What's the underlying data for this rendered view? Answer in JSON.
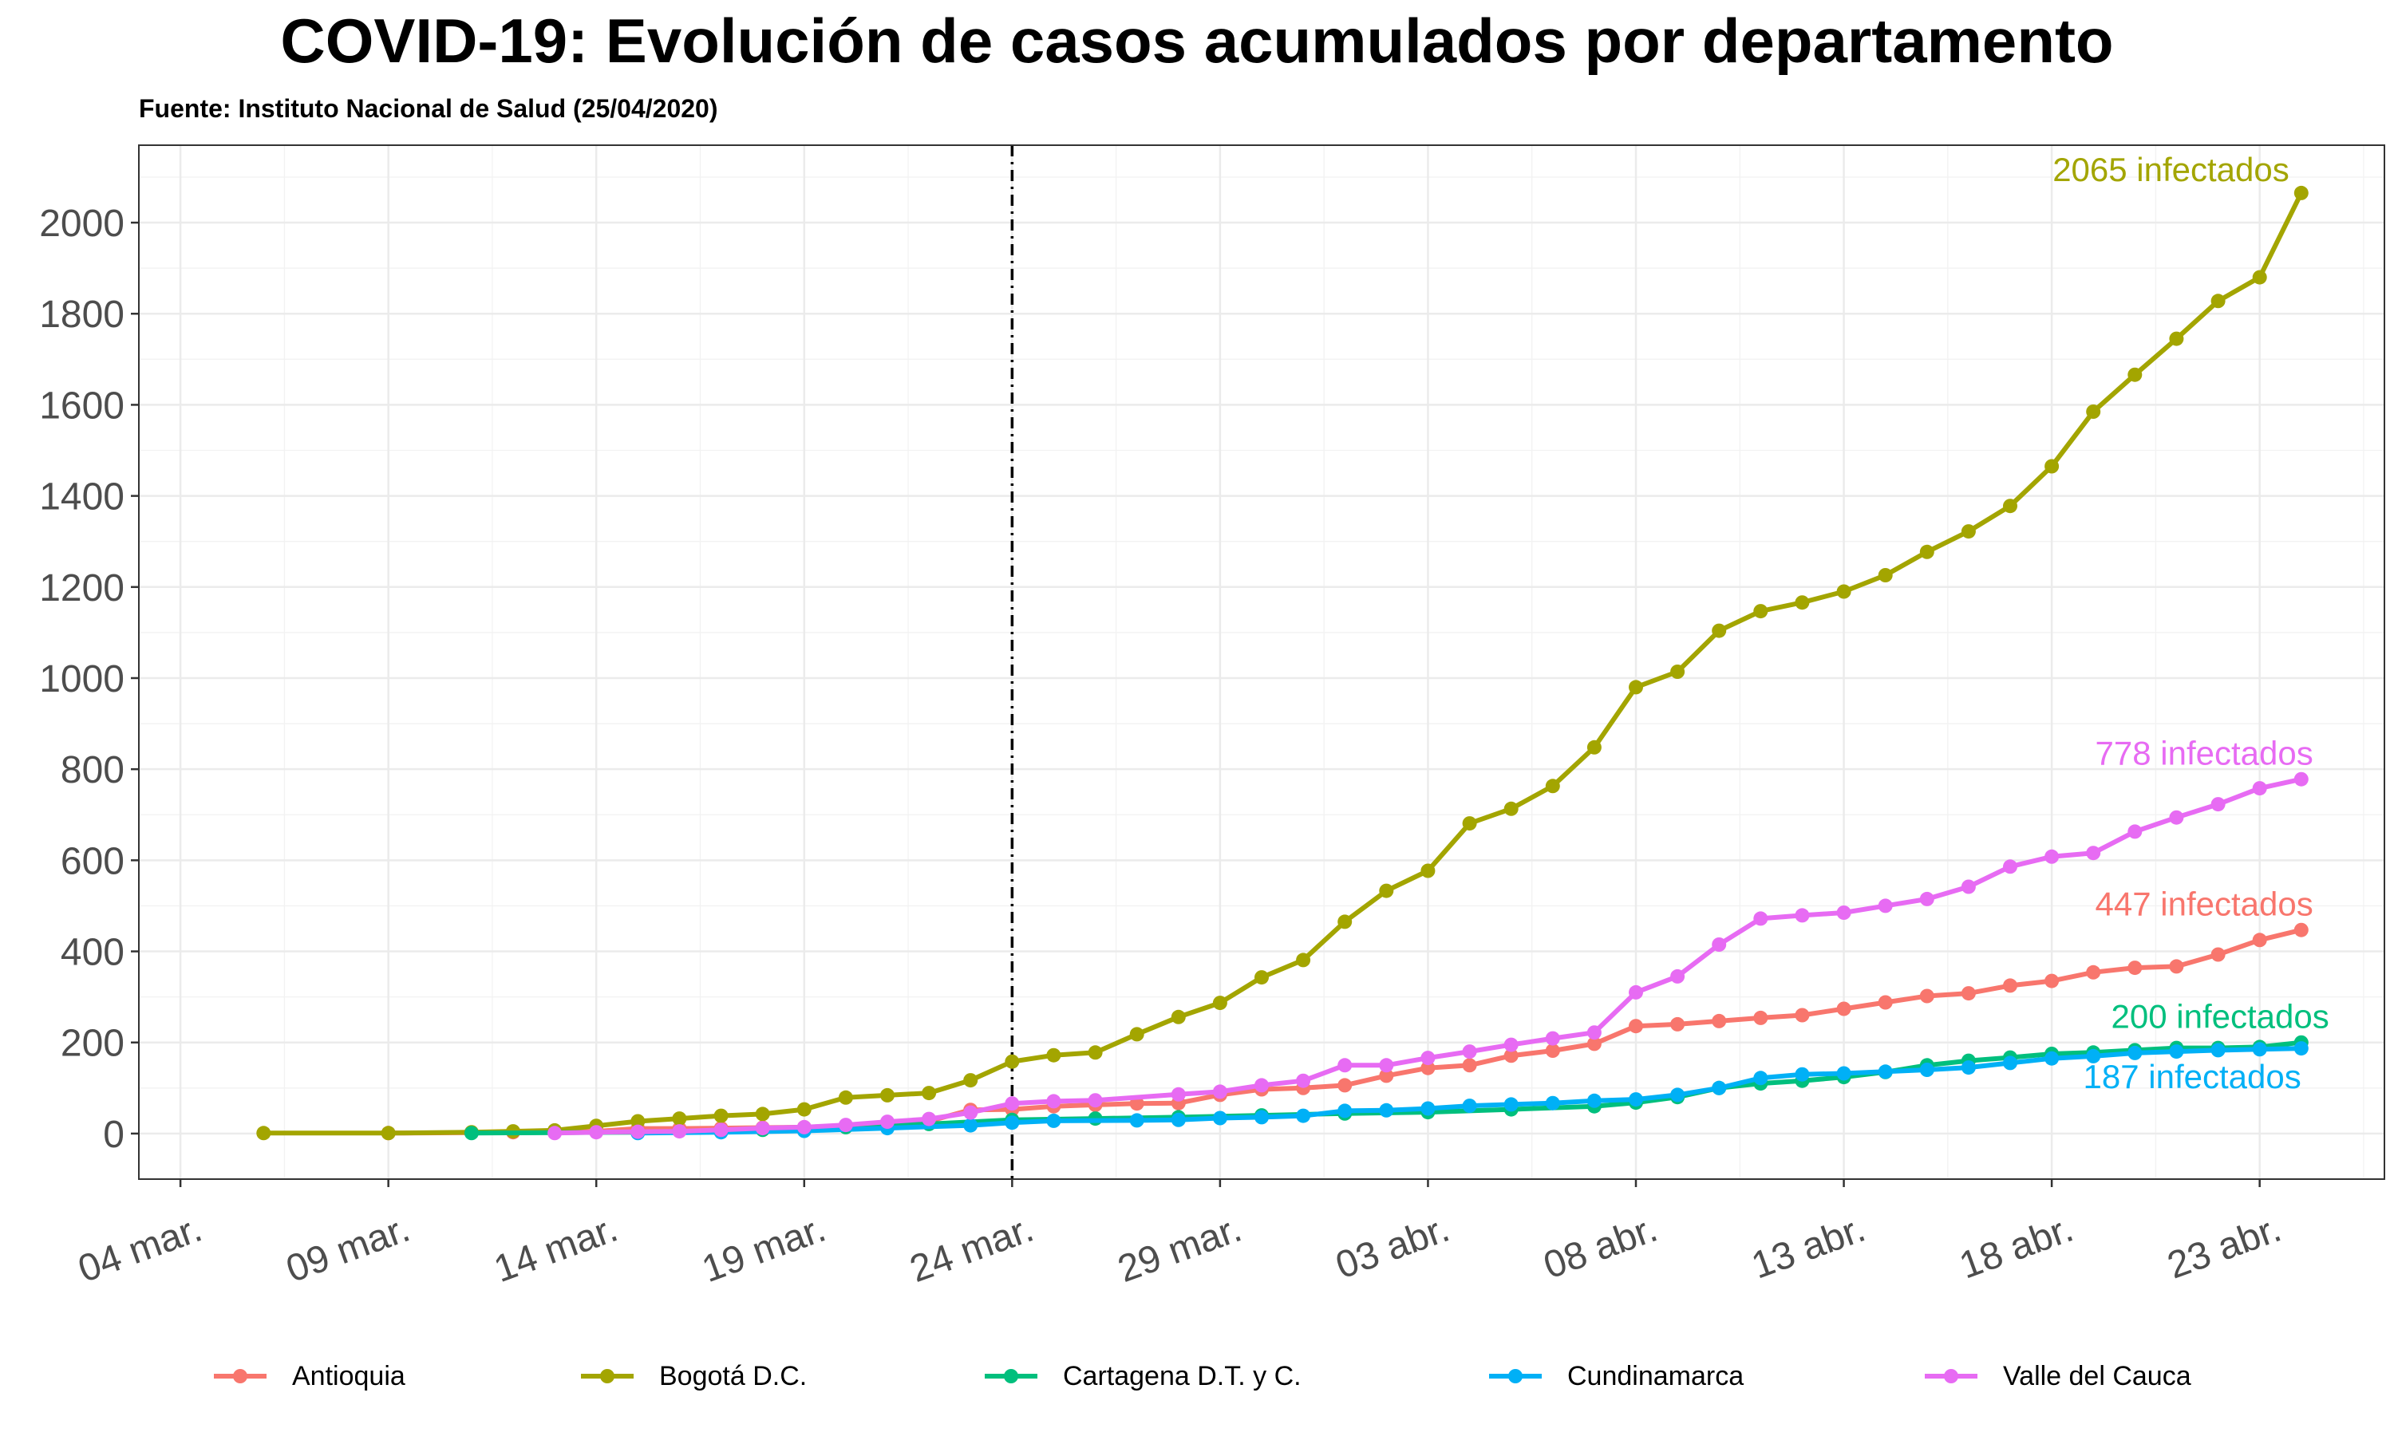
{
  "title": "COVID-19: Evolución de casos acumulados por departamento",
  "subtitle": "Fuente: Instituto Nacional de Salud (25/04/2020)",
  "chart_data": {
    "type": "line",
    "title": "COVID-19: Evolución de casos acumulados por departamento",
    "subtitle": "Fuente: Instituto Nacional de Salud (25/04/2020)",
    "xlabel": "",
    "ylabel": "",
    "x_range": [
      "2020-03-03",
      "2020-04-26"
    ],
    "ylim": [
      -100,
      2170
    ],
    "y_ticks": [
      0,
      200,
      400,
      600,
      800,
      1000,
      1200,
      1400,
      1600,
      1800,
      2000
    ],
    "x_ticks": [
      {
        "date": "2020-03-04",
        "label": "04 mar."
      },
      {
        "date": "2020-03-09",
        "label": "09 mar."
      },
      {
        "date": "2020-03-14",
        "label": "14 mar."
      },
      {
        "date": "2020-03-19",
        "label": "19 mar."
      },
      {
        "date": "2020-03-24",
        "label": "24 mar."
      },
      {
        "date": "2020-03-29",
        "label": "29 mar."
      },
      {
        "date": "2020-04-03",
        "label": "03 abr."
      },
      {
        "date": "2020-04-08",
        "label": "08 abr."
      },
      {
        "date": "2020-04-13",
        "label": "13 abr."
      },
      {
        "date": "2020-04-18",
        "label": "18 abr."
      },
      {
        "date": "2020-04-23",
        "label": "23 abr."
      }
    ],
    "vline_date": "2020-03-24",
    "grid": true,
    "legend_position": "bottom",
    "series": [
      {
        "name": "Antioquia",
        "color": "#F8766D",
        "end_label": "447 infectados",
        "x": [
          "2020-03-09",
          "2020-03-11",
          "2020-03-12",
          "2020-03-13",
          "2020-03-14",
          "2020-03-15",
          "2020-03-16",
          "2020-03-17",
          "2020-03-18",
          "2020-03-19",
          "2020-03-20",
          "2020-03-21",
          "2020-03-22",
          "2020-03-23",
          "2020-03-24",
          "2020-03-25",
          "2020-03-26",
          "2020-03-27",
          "2020-03-28",
          "2020-03-29",
          "2020-03-30",
          "2020-03-31",
          "2020-04-01",
          "2020-04-02",
          "2020-04-03",
          "2020-04-04",
          "2020-04-05",
          "2020-04-06",
          "2020-04-07",
          "2020-04-08",
          "2020-04-09",
          "2020-04-10",
          "2020-04-11",
          "2020-04-12",
          "2020-04-13",
          "2020-04-14",
          "2020-04-15",
          "2020-04-16",
          "2020-04-17",
          "2020-04-18",
          "2020-04-19",
          "2020-04-20",
          "2020-04-21",
          "2020-04-22",
          "2020-04-23",
          "2020-04-24"
        ],
        "y": [
          1,
          2,
          3,
          4,
          5,
          11,
          11,
          12,
          13,
          14,
          17,
          22,
          27,
          52,
          53,
          60,
          63,
          66,
          67,
          85,
          97,
          100,
          106,
          127,
          144,
          150,
          171,
          182,
          197,
          236,
          240,
          247,
          254,
          260,
          274,
          288,
          302,
          308,
          325,
          335,
          354,
          364,
          367,
          393,
          425,
          447
        ]
      },
      {
        "name": "Bogotá D.C.",
        "color": "#A3A500",
        "end_label": "2065 infectados",
        "x": [
          "2020-03-06",
          "2020-03-09",
          "2020-03-11",
          "2020-03-12",
          "2020-03-13",
          "2020-03-14",
          "2020-03-15",
          "2020-03-16",
          "2020-03-17",
          "2020-03-18",
          "2020-03-19",
          "2020-03-20",
          "2020-03-21",
          "2020-03-22",
          "2020-03-23",
          "2020-03-24",
          "2020-03-25",
          "2020-03-26",
          "2020-03-27",
          "2020-03-28",
          "2020-03-29",
          "2020-03-30",
          "2020-03-31",
          "2020-04-01",
          "2020-04-02",
          "2020-04-03",
          "2020-04-04",
          "2020-04-05",
          "2020-04-06",
          "2020-04-07",
          "2020-04-08",
          "2020-04-09",
          "2020-04-10",
          "2020-04-11",
          "2020-04-12",
          "2020-04-13",
          "2020-04-14",
          "2020-04-15",
          "2020-04-16",
          "2020-04-17",
          "2020-04-18",
          "2020-04-19",
          "2020-04-20",
          "2020-04-21",
          "2020-04-22",
          "2020-04-23",
          "2020-04-24"
        ],
        "y": [
          1,
          1,
          3,
          5,
          7,
          17,
          27,
          33,
          39,
          43,
          53,
          79,
          84,
          89,
          117,
          158,
          172,
          178,
          218,
          256,
          287,
          343,
          381,
          465,
          533,
          577,
          681,
          713,
          763,
          848,
          980,
          1014,
          1104,
          1147,
          1166,
          1190,
          1226,
          1277,
          1322,
          1378,
          1465,
          1585,
          1666,
          1745,
          1828,
          1880,
          2065
        ]
      },
      {
        "name": "Cartagena D.T. y C.",
        "color": "#00BF7D",
        "end_label": "200 infectados",
        "x": [
          "2020-03-11",
          "2020-03-15",
          "2020-03-18",
          "2020-03-20",
          "2020-03-22",
          "2020-03-24",
          "2020-03-26",
          "2020-03-28",
          "2020-03-30",
          "2020-04-01",
          "2020-04-03",
          "2020-04-05",
          "2020-04-07",
          "2020-04-08",
          "2020-04-09",
          "2020-04-10",
          "2020-04-11",
          "2020-04-12",
          "2020-04-13",
          "2020-04-14",
          "2020-04-15",
          "2020-04-16",
          "2020-04-17",
          "2020-04-18",
          "2020-04-19",
          "2020-04-20",
          "2020-04-21",
          "2020-04-22",
          "2020-04-23",
          "2020-04-24"
        ],
        "y": [
          1,
          3,
          8,
          14,
          21,
          30,
          33,
          36,
          40,
          44,
          47,
          53,
          60,
          68,
          80,
          100,
          110,
          116,
          124,
          135,
          150,
          160,
          167,
          175,
          178,
          183,
          188,
          188,
          190,
          200
        ]
      },
      {
        "name": "Cundinamarca",
        "color": "#00B0F6",
        "end_label": "187 infectados",
        "x": [
          "2020-03-15",
          "2020-03-17",
          "2020-03-19",
          "2020-03-21",
          "2020-03-23",
          "2020-03-24",
          "2020-03-25",
          "2020-03-27",
          "2020-03-28",
          "2020-03-29",
          "2020-03-30",
          "2020-03-31",
          "2020-04-01",
          "2020-04-02",
          "2020-04-03",
          "2020-04-04",
          "2020-04-05",
          "2020-04-06",
          "2020-04-07",
          "2020-04-08",
          "2020-04-09",
          "2020-04-10",
          "2020-04-11",
          "2020-04-12",
          "2020-04-13",
          "2020-04-14",
          "2020-04-15",
          "2020-04-16",
          "2020-04-17",
          "2020-04-18",
          "2020-04-19",
          "2020-04-20",
          "2020-04-21",
          "2020-04-22",
          "2020-04-23",
          "2020-04-24"
        ],
        "y": [
          1,
          3,
          6,
          12,
          18,
          24,
          28,
          29,
          30,
          34,
          36,
          39,
          50,
          51,
          55,
          61,
          64,
          67,
          72,
          75,
          85,
          100,
          122,
          130,
          132,
          136,
          140,
          145,
          155,
          165,
          170,
          177,
          180,
          183,
          185,
          187
        ]
      },
      {
        "name": "Valle del Cauca",
        "color": "#E76BF3",
        "end_label": "778 infectados",
        "x": [
          "2020-03-13",
          "2020-03-14",
          "2020-03-15",
          "2020-03-16",
          "2020-03-17",
          "2020-03-18",
          "2020-03-19",
          "2020-03-20",
          "2020-03-21",
          "2020-03-22",
          "2020-03-23",
          "2020-03-24",
          "2020-03-25",
          "2020-03-26",
          "2020-03-28",
          "2020-03-29",
          "2020-03-30",
          "2020-03-31",
          "2020-04-01",
          "2020-04-02",
          "2020-04-03",
          "2020-04-04",
          "2020-04-05",
          "2020-04-06",
          "2020-04-07",
          "2020-04-08",
          "2020-04-09",
          "2020-04-10",
          "2020-04-11",
          "2020-04-12",
          "2020-04-13",
          "2020-04-14",
          "2020-04-15",
          "2020-04-16",
          "2020-04-17",
          "2020-04-18",
          "2020-04-19",
          "2020-04-20",
          "2020-04-21",
          "2020-04-22",
          "2020-04-23",
          "2020-04-24"
        ],
        "y": [
          1,
          3,
          4,
          5,
          8,
          12,
          14,
          19,
          26,
          32,
          46,
          66,
          71,
          73,
          86,
          92,
          106,
          116,
          150,
          150,
          166,
          180,
          195,
          209,
          222,
          310,
          345,
          415,
          472,
          479,
          485,
          500,
          515,
          542,
          586,
          608,
          616,
          663,
          694,
          723,
          758,
          778
        ]
      }
    ]
  }
}
